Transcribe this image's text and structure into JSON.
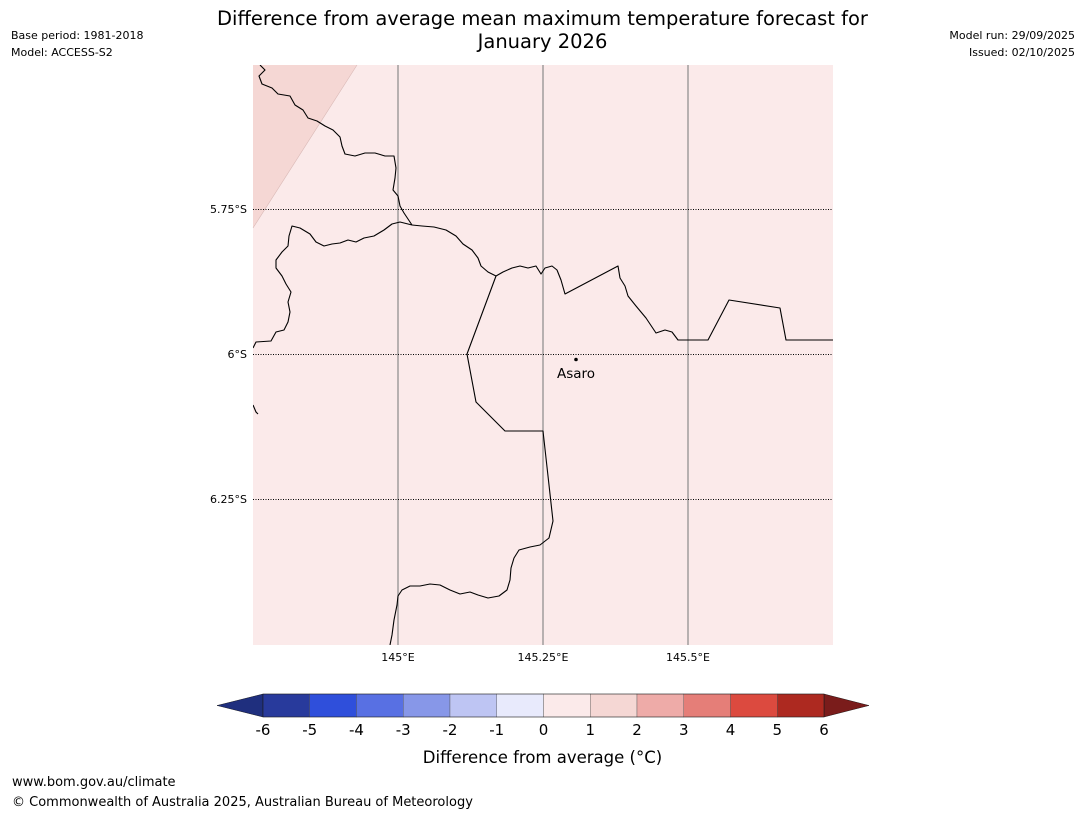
{
  "title": {
    "line1": "Difference from average mean maximum temperature forecast for",
    "line2": "January 2026"
  },
  "meta_left": {
    "base_period": "Base period: 1981-2018",
    "model": "Model: ACCESS-S2"
  },
  "meta_right": {
    "model_run": "Model run: 29/09/2025",
    "issued": "Issued: 02/10/2025"
  },
  "map": {
    "lat_labels": [
      "5.75°S",
      "6°S",
      "6.25°S"
    ],
    "lon_labels": [
      "145°E",
      "145.25°E",
      "145.5°E"
    ],
    "place": {
      "name": "Asaro",
      "lat": -6.02,
      "lon": 145.3
    },
    "anomaly_classes": {
      "main_area": "0 to 1",
      "top_left_corner": "1 to 2"
    }
  },
  "colorbar": {
    "ticks": [
      "-6",
      "-5",
      "-4",
      "-3",
      "-2",
      "-1",
      "0",
      "1",
      "2",
      "3",
      "4",
      "5",
      "6"
    ],
    "colors": [
      "#283a9c",
      "#2f4fdb",
      "#5870e3",
      "#8797e8",
      "#bec5f3",
      "#e8eafc",
      "#fbeaea",
      "#f5d7d4",
      "#eeaba8",
      "#e57e78",
      "#dc4a3f",
      "#ad2920"
    ],
    "under_color": "#1f2f7e",
    "over_color": "#7a1c1b",
    "label": "Difference from average (°C)"
  },
  "footer": {
    "url": "www.bom.gov.au/climate",
    "copyright": "© Commonwealth of Australia 2025, Australian Bureau of Meteorology"
  }
}
